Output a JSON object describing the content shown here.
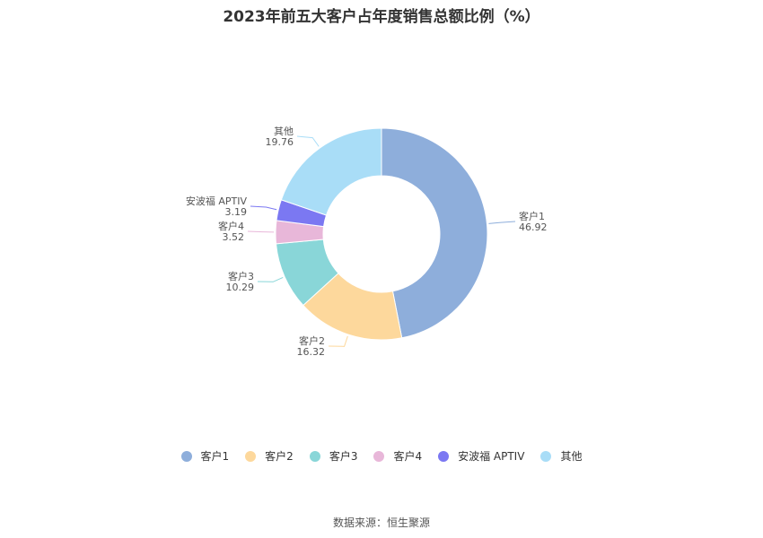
{
  "chart_data": {
    "type": "pie",
    "variant": "donut",
    "title": "2023年前五大客户占年度销售总额比例（%）",
    "slices": [
      {
        "label": "客户1",
        "value": 46.92,
        "color": "#8eaedb"
      },
      {
        "label": "客户2",
        "value": 16.32,
        "color": "#fdd89c"
      },
      {
        "label": "客户3",
        "value": 10.29,
        "color": "#89d6d8"
      },
      {
        "label": "客户4",
        "value": 3.52,
        "color": "#e8b7d9"
      },
      {
        "label": "安波福 APTIV",
        "value": 3.19,
        "color": "#7b78f2"
      },
      {
        "label": "其他",
        "value": 19.76,
        "color": "#a9ddf7"
      }
    ],
    "legend_position": "bottom",
    "start_angle": "top, clockwise"
  },
  "source": "数据来源：恒生聚源"
}
